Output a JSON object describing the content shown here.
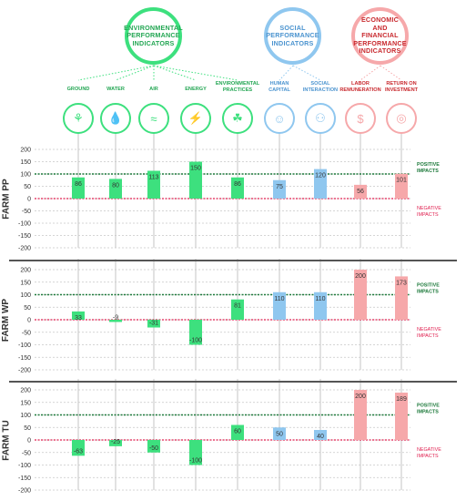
{
  "groups": [
    {
      "label": "ENVIRONMENTAL\nPERFORMANCE\nINDICATORS",
      "color": "#3de07e"
    },
    {
      "label": "SOCIAL\nPERFORMANCE\nINDICATORS",
      "color": "#8fc7ef"
    },
    {
      "label": "ECONOMIC\nAND FINANCIAL\nPERFORMANCE\nINDICATORS",
      "color": "#f6a8aa"
    }
  ],
  "indicators": [
    {
      "label": "GROUND",
      "group": 0,
      "icon": "plant-icon"
    },
    {
      "label": "WATER",
      "group": 0,
      "icon": "water-drops-icon"
    },
    {
      "label": "AIR",
      "group": 0,
      "icon": "wind-icon"
    },
    {
      "label": "ENERGY",
      "group": 0,
      "icon": "lightning-icon"
    },
    {
      "label": "ENVIRONMENTAL\nPRACTICES",
      "group": 0,
      "icon": "hands-plant-icon"
    },
    {
      "label": "HUMAN\nCAPITAL",
      "group": 1,
      "icon": "hands-person-icon"
    },
    {
      "label": "SOCIAL\nINTERACTION",
      "group": 1,
      "icon": "people-network-icon"
    },
    {
      "label": "LABOR\nREMUNERATION",
      "group": 2,
      "icon": "hand-coin-icon"
    },
    {
      "label": "RETURN ON\nINVESTMENT",
      "group": 2,
      "icon": "target-coin-icon"
    }
  ],
  "colors": {
    "environmental": "#3de07e",
    "social": "#8fc7ef",
    "economic": "#f6a8aa",
    "positive_line": "#1e7a3c",
    "negative_line": "#e02050",
    "grid": "#c8c8c8",
    "positive_text": "#1e7a3c",
    "negative_text": "#e02050",
    "group_text_env": "#23a653",
    "group_text_soc": "#4a93cf",
    "group_text_eco": "#c8282d"
  },
  "annotations": {
    "positive": "POSITIVE\nIMPACTS",
    "negative": "NEGATIVE\nIMPACTS"
  },
  "chart_data": [
    {
      "type": "bar",
      "farm": "FARM PP",
      "categories": [
        "GROUND",
        "WATER",
        "AIR",
        "ENERGY",
        "ENVIRONMENTAL PRACTICES",
        "HUMAN CAPITAL",
        "SOCIAL INTERACTION",
        "LABOR REMUNERATION",
        "RETURN ON INVESTMENT"
      ],
      "values": [
        86,
        80,
        113,
        150,
        86,
        75,
        120,
        56,
        101
      ],
      "ylim": [
        -200,
        200
      ],
      "yticks": [
        200,
        150,
        100,
        50,
        0,
        -50,
        -100,
        -150,
        -200
      ],
      "reference_lines": [
        100,
        0
      ],
      "grid": true
    },
    {
      "type": "bar",
      "farm": "FARM WP",
      "categories": [
        "GROUND",
        "WATER",
        "AIR",
        "ENERGY",
        "ENVIRONMENTAL PRACTICES",
        "HUMAN CAPITAL",
        "SOCIAL INTERACTION",
        "LABOR REMUNERATION",
        "RETURN ON INVESTMENT"
      ],
      "values": [
        33,
        -9,
        -31,
        -100,
        81,
        110,
        110,
        200,
        173
      ],
      "ylim": [
        -200,
        200
      ],
      "yticks": [
        200,
        150,
        100,
        50,
        0,
        -50,
        -100,
        -150,
        -200
      ],
      "reference_lines": [
        100,
        0
      ],
      "grid": true
    },
    {
      "type": "bar",
      "farm": "FARM TU",
      "categories": [
        "GROUND",
        "WATER",
        "AIR",
        "ENERGY",
        "ENVIRONMENTAL PRACTICES",
        "HUMAN CAPITAL",
        "SOCIAL INTERACTION",
        "LABOR REMUNERATION",
        "RETURN ON INVESTMENT"
      ],
      "values": [
        -63,
        -25,
        -50,
        -100,
        60,
        50,
        40,
        200,
        189
      ],
      "ylim": [
        -200,
        200
      ],
      "yticks": [
        200,
        150,
        100,
        50,
        0,
        -50,
        -100,
        -150,
        -200
      ],
      "reference_lines": [
        100,
        0
      ],
      "grid": true
    }
  ]
}
